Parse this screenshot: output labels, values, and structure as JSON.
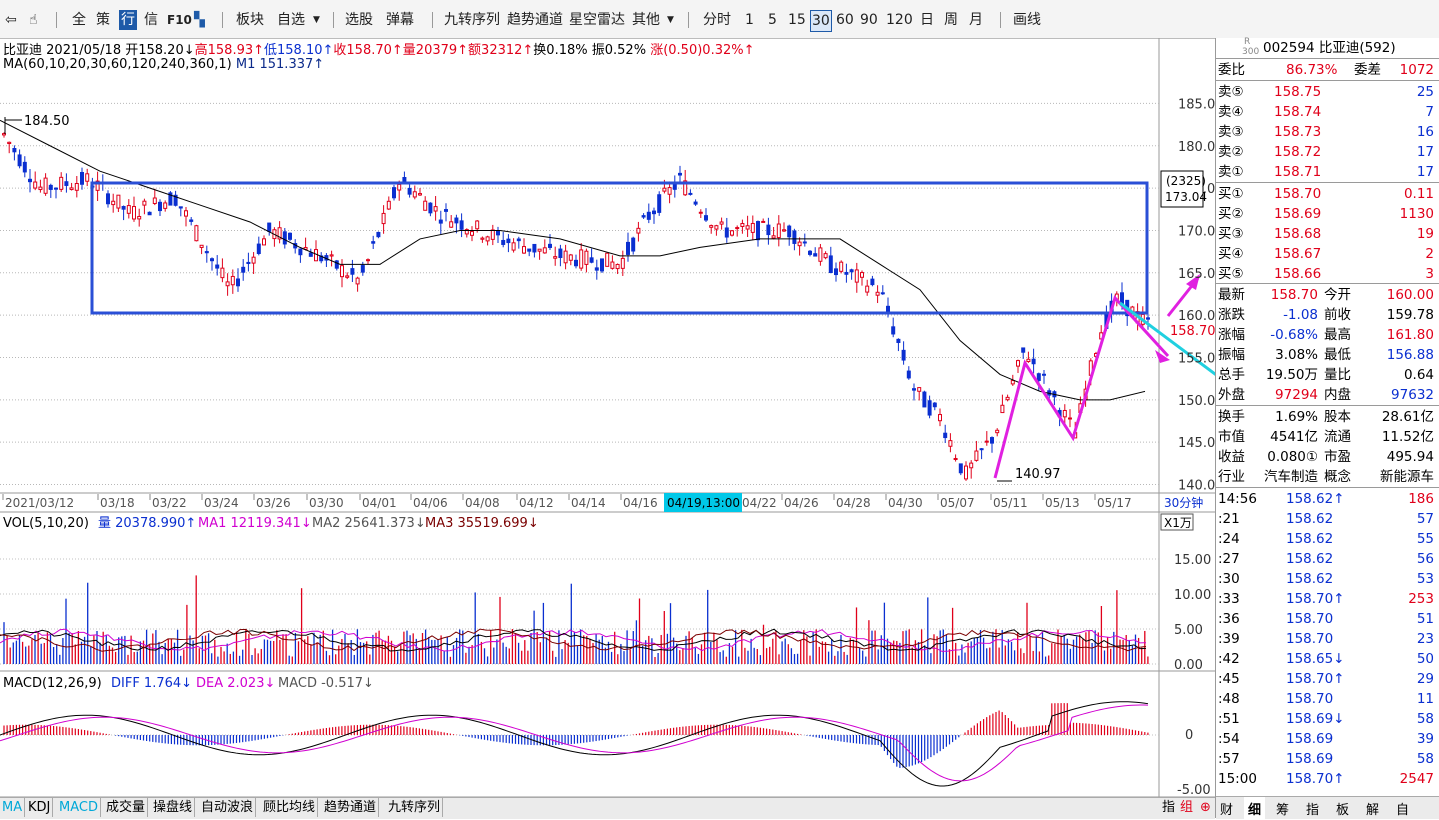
{
  "toolbar": {
    "items": [
      "全",
      "策",
      "行",
      "信",
      "F10",
      "板块",
      "自选",
      "选股",
      "弹幕",
      "九转序列",
      "趋势通道",
      "星空雷达",
      "其他",
      "分时",
      "1",
      "5",
      "15",
      "30",
      "60",
      "90",
      "120",
      "日",
      "周",
      "月",
      "画线"
    ]
  },
  "header": {
    "name": "比亚迪",
    "date": "2021/05/18",
    "open": "开158.20↓",
    "high": "高158.93↑",
    "low": "低158.10↑",
    "close": "收158.70↑",
    "volume": "量20379↑",
    "amount": "额32312↑",
    "turnover": "换0.18%",
    "amplitude": "振0.52%",
    "change": "涨(0.50)0.32%↑",
    "ma_params": "MA(60,10,20,30,60,120,240,360,1)",
    "ma_value": "M1 151.337↑"
  },
  "price_chart": {
    "y_ticks": [
      "185.00",
      "180.00",
      "175.00",
      "170.00",
      "165.00",
      "160.00",
      "155.00",
      "150.00",
      "145.00",
      "140.00"
    ],
    "box_label_top": "(2325)",
    "box_label_value": "173.04",
    "current_price_label": "158.70",
    "high_marker": "184.50",
    "low_marker": "140.97"
  },
  "time_axis": {
    "labels": [
      "2021/03/12",
      "03/18",
      "03/22",
      "03/24",
      "03/26",
      "03/30",
      "04/01",
      "04/06",
      "04/08",
      "04/12",
      "04/14",
      "04/16",
      "04/22",
      "04/26",
      "04/28",
      "04/30",
      "05/07",
      "05/11",
      "05/13",
      "05/17"
    ],
    "cursor_label": "04/19,13:00",
    "period_label": "30分钟"
  },
  "vol_panel": {
    "title": "VOL(5,10,20)",
    "vol": "量 20378.990↑",
    "ma1": "MA1 12119.341↓",
    "ma2": "MA2 25641.373↓",
    "ma3": "MA3 35519.699↓",
    "unit": "X1万",
    "y_ticks": [
      "15.00",
      "10.00",
      "5.00",
      "0.00"
    ]
  },
  "macd_panel": {
    "title": "MACD(12,26,9)",
    "diff": "DIFF 1.764↓",
    "dea": "DEA 2.023↓",
    "macd": "MACD -0.517↓",
    "y_ticks": [
      "0",
      "-5.00"
    ]
  },
  "bottom_tabs": [
    "MA",
    "KDJ",
    "MACD",
    "成交量",
    "操盘线",
    "自动波浪",
    "顾比均线",
    "趋势通道",
    "九转序列"
  ],
  "bottom_right": {
    "left_items": [
      "指",
      "组"
    ],
    "tabs": [
      "财",
      "细",
      "筹",
      "指",
      "板",
      "解",
      "自"
    ]
  },
  "quote": {
    "code_prefix_top": "R",
    "code_prefix_bottom": "300",
    "code_name": "002594 比亚迪(592)",
    "weibi_label": "委比",
    "weibi": "86.73%",
    "weicha_label": "委差",
    "weicha": "1072",
    "asks": [
      {
        "label": "卖⑤",
        "price": "158.75",
        "vol": "25"
      },
      {
        "label": "卖④",
        "price": "158.74",
        "vol": "7"
      },
      {
        "label": "卖③",
        "price": "158.73",
        "vol": "16"
      },
      {
        "label": "卖②",
        "price": "158.72",
        "vol": "17"
      },
      {
        "label": "卖①",
        "price": "158.71",
        "vol": "17"
      }
    ],
    "bids": [
      {
        "label": "买①",
        "price": "158.70",
        "vol": "0.11"
      },
      {
        "label": "买②",
        "price": "158.69",
        "vol": "1130"
      },
      {
        "label": "买③",
        "price": "158.68",
        "vol": "19"
      },
      {
        "label": "买④",
        "price": "158.67",
        "vol": "2"
      },
      {
        "label": "买⑤",
        "price": "158.66",
        "vol": "3"
      }
    ],
    "stats": [
      {
        "l1": "最新",
        "v1": "158.70",
        "l2": "今开",
        "v2": "160.00"
      },
      {
        "l1": "涨跌",
        "v1": "-1.08",
        "l2": "前收",
        "v2": "159.78"
      },
      {
        "l1": "涨幅",
        "v1": "-0.68%",
        "l2": "最高",
        "v2": "161.80"
      },
      {
        "l1": "振幅",
        "v1": "3.08%",
        "l2": "最低",
        "v2": "156.88"
      },
      {
        "l1": "总手",
        "v1": "19.50万",
        "l2": "量比",
        "v2": "0.64"
      },
      {
        "l1": "外盘",
        "v1": "97294",
        "l2": "内盘",
        "v2": "97632"
      }
    ],
    "fundamentals": [
      {
        "l1": "换手",
        "v1": "1.69%",
        "l2": "股本",
        "v2": "28.61亿"
      },
      {
        "l1": "市值",
        "v1": "4541亿",
        "l2": "流通",
        "v2": "11.52亿"
      },
      {
        "l1": "收益",
        "v1": "0.080①",
        "l2": "市盈",
        "v2": "495.94"
      },
      {
        "l1": "行业",
        "v1": "汽车制造",
        "l2": "概念",
        "v2": "新能源车"
      }
    ],
    "ticks": [
      {
        "time": "14:56",
        "price": "158.62↑",
        "vol": "186"
      },
      {
        "time": ":21",
        "price": "158.62",
        "vol": "57"
      },
      {
        "time": ":24",
        "price": "158.62",
        "vol": "55"
      },
      {
        "time": ":27",
        "price": "158.62",
        "vol": "56"
      },
      {
        "time": ":30",
        "price": "158.62",
        "vol": "53"
      },
      {
        "time": ":33",
        "price": "158.70↑",
        "vol": "253"
      },
      {
        "time": ":36",
        "price": "158.70",
        "vol": "51"
      },
      {
        "time": ":39",
        "price": "158.70",
        "vol": "23"
      },
      {
        "time": ":42",
        "price": "158.65↓",
        "vol": "50"
      },
      {
        "time": ":45",
        "price": "158.70↑",
        "vol": "29"
      },
      {
        "time": ":48",
        "price": "158.70",
        "vol": "11"
      },
      {
        "time": ":51",
        "price": "158.69↓",
        "vol": "58"
      },
      {
        "time": ":54",
        "price": "158.69",
        "vol": "39"
      },
      {
        "time": ":57",
        "price": "158.69",
        "vol": "58"
      },
      {
        "time": "15:00",
        "price": "158.70↑",
        "vol": "2547"
      }
    ]
  },
  "colors": {
    "up": "#e0001a",
    "down": "#0a2fd0",
    "ma": "#000000",
    "box": "#2a4fd6",
    "annotation_magenta": "#e020e0",
    "annotation_cyan": "#20d0e0",
    "cursor": "#00c8e8"
  }
}
